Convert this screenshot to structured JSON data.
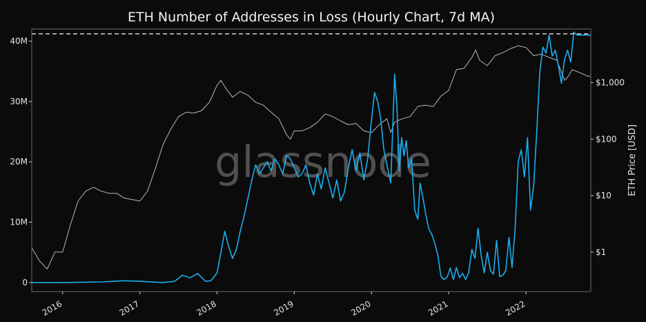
{
  "chart_data": {
    "type": "line",
    "title": "ETH Number of Addresses in Loss (Hourly Chart, 7d MA)",
    "watermark": "glassnode",
    "xlabel": "",
    "ylabel_left": "",
    "ylabel_right": "ETH Price [USD]",
    "xlim": [
      2015.6,
      2022.84
    ],
    "ylim_left": [
      -1500000,
      42000000
    ],
    "ylim_right_log10": [
      -0.7,
      3.95
    ],
    "grid": false,
    "x_ticks": [
      {
        "value": 2016,
        "label": "2016"
      },
      {
        "value": 2017,
        "label": "2017"
      },
      {
        "value": 2018,
        "label": "2018"
      },
      {
        "value": 2019,
        "label": "2019"
      },
      {
        "value": 2020,
        "label": "2020"
      },
      {
        "value": 2021,
        "label": "2021"
      },
      {
        "value": 2022,
        "label": "2022"
      }
    ],
    "y_left_ticks": [
      {
        "value": 0,
        "label": "0"
      },
      {
        "value": 10000000,
        "label": "10M"
      },
      {
        "value": 20000000,
        "label": "20M"
      },
      {
        "value": 30000000,
        "label": "30M"
      },
      {
        "value": 40000000,
        "label": "40M"
      }
    ],
    "y_right_ticks": [
      {
        "value": 1,
        "label": "$1"
      },
      {
        "value": 10,
        "label": "$10"
      },
      {
        "value": 100,
        "label": "$100"
      },
      {
        "value": 1000,
        "label": "$1,000"
      }
    ],
    "ath_line": {
      "axis": "left",
      "value": 41200000,
      "style": "dashed",
      "color": "#ffffff"
    },
    "series": [
      {
        "axis": "left",
        "color": "#1ab0f0",
        "x": [
          2015.6,
          2016.0,
          2016.5,
          2016.8,
          2017.0,
          2017.3,
          2017.45,
          2017.55,
          2017.65,
          2017.75,
          2017.85,
          2017.92,
          2018.0,
          2018.05,
          2018.1,
          2018.15,
          2018.2,
          2018.25,
          2018.3,
          2018.35,
          2018.4,
          2018.45,
          2018.5,
          2018.55,
          2018.6,
          2018.65,
          2018.7,
          2018.75,
          2018.8,
          2018.85,
          2018.9,
          2018.95,
          2019.0,
          2019.05,
          2019.1,
          2019.15,
          2019.2,
          2019.25,
          2019.3,
          2019.35,
          2019.4,
          2019.45,
          2019.5,
          2019.55,
          2019.6,
          2019.65,
          2019.7,
          2019.75,
          2019.8,
          2019.85,
          2019.9,
          2019.95,
          2020.0,
          2020.04,
          2020.08,
          2020.12,
          2020.16,
          2020.2,
          2020.25,
          2020.3,
          2020.33,
          2020.36,
          2020.39,
          2020.42,
          2020.45,
          2020.48,
          2020.52,
          2020.56,
          2020.6,
          2020.63,
          2020.66,
          2020.7,
          2020.74,
          2020.78,
          2020.82,
          2020.86,
          2020.9,
          2020.94,
          2020.98,
          2021.02,
          2021.06,
          2021.1,
          2021.14,
          2021.18,
          2021.22,
          2021.26,
          2021.3,
          2021.34,
          2021.38,
          2021.42,
          2021.46,
          2021.5,
          2021.54,
          2021.58,
          2021.62,
          2021.66,
          2021.7,
          2021.74,
          2021.78,
          2021.82,
          2021.86,
          2021.9,
          2021.94,
          2021.98,
          2022.02,
          2022.06,
          2022.1,
          2022.14,
          2022.18,
          2022.22,
          2022.26,
          2022.3,
          2022.34,
          2022.38,
          2022.42,
          2022.46,
          2022.5,
          2022.54,
          2022.58,
          2022.62,
          2022.66,
          2022.7,
          2022.74,
          2022.78,
          2022.82,
          2022.84
        ],
        "y": [
          0,
          0,
          100000,
          300000,
          200000,
          0,
          200000,
          1200000,
          800000,
          1500000,
          200000,
          300000,
          1600000,
          5000000,
          8500000,
          6000000,
          4000000,
          5500000,
          8500000,
          11000000,
          14000000,
          17000000,
          19500000,
          18000000,
          19000000,
          20000000,
          18500000,
          20500000,
          19500000,
          18000000,
          21000000,
          20500000,
          19000000,
          17500000,
          18000000,
          19500000,
          16500000,
          14500000,
          18000000,
          15500000,
          19000000,
          16500000,
          14000000,
          17000000,
          13500000,
          15000000,
          19000000,
          22000000,
          18500000,
          21500000,
          17000000,
          20500000,
          27000000,
          31500000,
          30000000,
          27000000,
          22000000,
          19500000,
          16500000,
          34500000,
          29000000,
          18500000,
          24000000,
          21000000,
          23500000,
          19000000,
          20500000,
          12000000,
          10500000,
          16500000,
          14500000,
          11500000,
          9000000,
          8000000,
          6500000,
          4500000,
          1000000,
          500000,
          900000,
          2400000,
          500000,
          2500000,
          800000,
          1500000,
          500000,
          1700000,
          5500000,
          4000000,
          9000000,
          4500000,
          1600000,
          5000000,
          2000000,
          1400000,
          7000000,
          1000000,
          1200000,
          2000000,
          7500000,
          2500000,
          9000000,
          20000000,
          22000000,
          17500000,
          24000000,
          12000000,
          16000000,
          25000000,
          35000000,
          39000000,
          38000000,
          41000000,
          37500000,
          38500000,
          36000000,
          33000000,
          37000000,
          38500000,
          36500000,
          41500000,
          41000000,
          41000000,
          41000000,
          41000000,
          41000000,
          41000000
        ]
      },
      {
        "axis": "right",
        "color": "#b9b9b9",
        "x": [
          2015.6,
          2015.7,
          2015.8,
          2015.9,
          2016.0,
          2016.1,
          2016.2,
          2016.3,
          2016.4,
          2016.5,
          2016.6,
          2016.7,
          2016.8,
          2016.9,
          2017.0,
          2017.1,
          2017.2,
          2017.3,
          2017.4,
          2017.5,
          2017.6,
          2017.7,
          2017.8,
          2017.9,
          2018.0,
          2018.05,
          2018.1,
          2018.2,
          2018.3,
          2018.4,
          2018.5,
          2018.6,
          2018.7,
          2018.8,
          2018.9,
          2018.95,
          2019.0,
          2019.1,
          2019.2,
          2019.3,
          2019.4,
          2019.5,
          2019.6,
          2019.7,
          2019.8,
          2019.9,
          2020.0,
          2020.1,
          2020.2,
          2020.25,
          2020.3,
          2020.4,
          2020.5,
          2020.6,
          2020.7,
          2020.8,
          2020.9,
          2021.0,
          2021.1,
          2021.2,
          2021.3,
          2021.35,
          2021.4,
          2021.5,
          2021.6,
          2021.7,
          2021.8,
          2021.9,
          2022.0,
          2022.1,
          2022.2,
          2022.3,
          2022.4,
          2022.5,
          2022.55,
          2022.6,
          2022.65,
          2022.7,
          2022.75,
          2022.8,
          2022.84
        ],
        "y": [
          1.2,
          0.7,
          0.5,
          1.0,
          1.0,
          3.0,
          8.0,
          12.0,
          14.0,
          12.0,
          11.0,
          11.0,
          9.0,
          8.5,
          8.0,
          12.0,
          30.0,
          80.0,
          150.0,
          250.0,
          300.0,
          290.0,
          320.0,
          450.0,
          900.0,
          1100.0,
          850.0,
          550.0,
          700.0,
          600.0,
          450.0,
          400.0,
          300.0,
          230.0,
          120.0,
          100.0,
          140.0,
          140.0,
          160.0,
          200.0,
          280.0,
          250.0,
          210.0,
          180.0,
          190.0,
          140.0,
          130.0,
          180.0,
          230.0,
          130.0,
          200.0,
          230.0,
          250.0,
          380.0,
          400.0,
          380.0,
          580.0,
          730.0,
          1700.0,
          1800.0,
          2800.0,
          3800.0,
          2500.0,
          2000.0,
          3000.0,
          3400.0,
          4000.0,
          4500.0,
          4200.0,
          3000.0,
          3200.0,
          2800.0,
          2500.0,
          1100.0,
          1300.0,
          1700.0,
          1600.0,
          1500.0,
          1400.0,
          1300.0,
          1300.0
        ]
      }
    ]
  }
}
